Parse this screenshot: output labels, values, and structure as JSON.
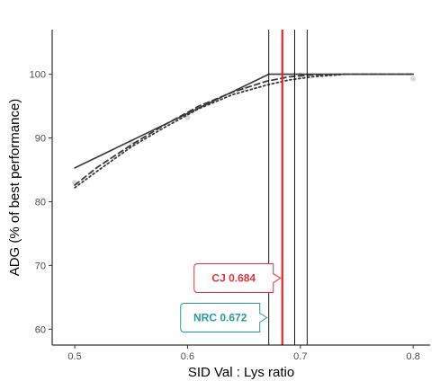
{
  "chart_data": {
    "type": "line",
    "xlabel": "SID Val : Lys ratio",
    "ylabel": "ADG (% of best performance)",
    "xlim": [
      0.48,
      0.815
    ],
    "ylim": [
      57.5,
      107
    ],
    "xticks": [
      "0.5",
      "0.6",
      "0.7",
      "0.8"
    ],
    "yticks": [
      "60",
      "70",
      "80",
      "90",
      "100"
    ],
    "grid": false,
    "series": [
      {
        "style": "solid",
        "color": "#3a3a3a",
        "x": [
          0.5,
          0.672,
          0.8
        ],
        "y": [
          85.3,
          100.0,
          100.0
        ]
      },
      {
        "style": "dashed",
        "color": "#3a3a3a",
        "x": [
          0.5,
          0.52,
          0.55,
          0.58,
          0.61,
          0.64,
          0.67,
          0.69,
          0.71,
          0.74,
          0.8
        ],
        "y": [
          82.6,
          85.4,
          88.9,
          92.1,
          95.0,
          97.2,
          98.9,
          99.6,
          99.9,
          100.0,
          100.0
        ]
      },
      {
        "style": "dotted",
        "color": "#3a3a3a",
        "x": [
          0.5,
          0.52,
          0.55,
          0.58,
          0.61,
          0.64,
          0.67,
          0.69,
          0.71,
          0.74,
          0.8
        ],
        "y": [
          82.2,
          84.8,
          88.6,
          91.7,
          94.6,
          96.8,
          98.3,
          99.1,
          99.6,
          100.0,
          100.0
        ]
      }
    ],
    "observed_points": {
      "color": "#d9d9d9",
      "x": [
        0.5,
        0.55,
        0.6,
        0.65,
        0.7,
        0.8
      ],
      "y": [
        83.0,
        89.4,
        93.2,
        97.8,
        99.9,
        99.3
      ]
    },
    "vlines": [
      {
        "x": 0.672,
        "color": "#000000"
      },
      {
        "x": 0.684,
        "color": "#e8232a"
      },
      {
        "x": 0.695,
        "color": "#000000"
      },
      {
        "x": 0.706,
        "color": "#000000"
      }
    ],
    "annotations": [
      {
        "label": "CJ 0.684",
        "x": 0.684,
        "y": 68,
        "color": "#e0343c"
      },
      {
        "label": "NRC 0.672",
        "x": 0.672,
        "y": 61.8,
        "color": "#2a9d96"
      }
    ]
  }
}
